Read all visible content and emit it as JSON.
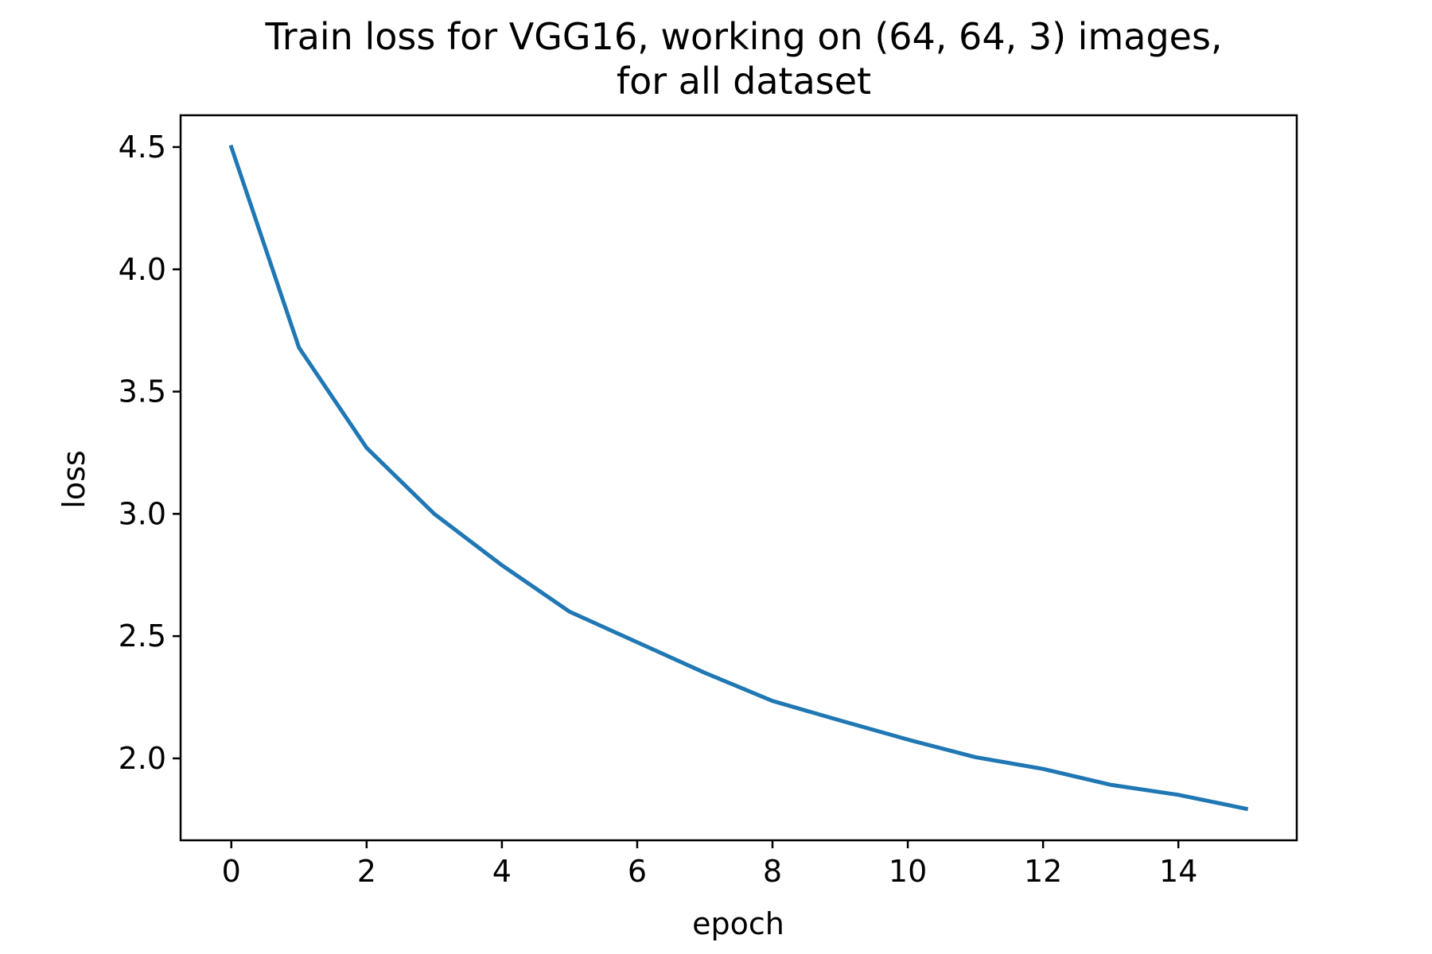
{
  "chart_data": {
    "type": "line",
    "title": "Train loss for VGG16, working on (64, 64, 3) images,",
    "subtitle": "for all dataset",
    "xlabel": "epoch",
    "ylabel": "loss",
    "x": [
      0,
      1,
      2,
      3,
      4,
      5,
      6,
      7,
      8,
      9,
      10,
      11,
      12,
      13,
      14,
      15
    ],
    "series": [
      {
        "values": [
          4.5,
          3.68,
          3.27,
          3.0,
          2.79,
          2.6,
          2.475,
          2.35,
          2.235,
          2.155,
          2.077,
          2.005,
          1.957,
          1.892,
          1.851,
          1.794
        ],
        "color": "#1f77b4"
      }
    ],
    "xlim": [
      -0.75,
      15.75
    ],
    "ylim": [
      1.665,
      4.63
    ],
    "xticks": [
      0,
      2,
      4,
      6,
      8,
      10,
      12,
      14
    ],
    "xtick_labels": [
      "0",
      "2",
      "4",
      "6",
      "8",
      "10",
      "12",
      "14"
    ],
    "yticks": [
      2.0,
      2.5,
      3.0,
      3.5,
      4.0,
      4.5
    ],
    "ytick_labels": [
      "2.0",
      "2.5",
      "3.0",
      "3.5",
      "4.0",
      "4.5"
    ],
    "grid": false,
    "legend": false
  }
}
